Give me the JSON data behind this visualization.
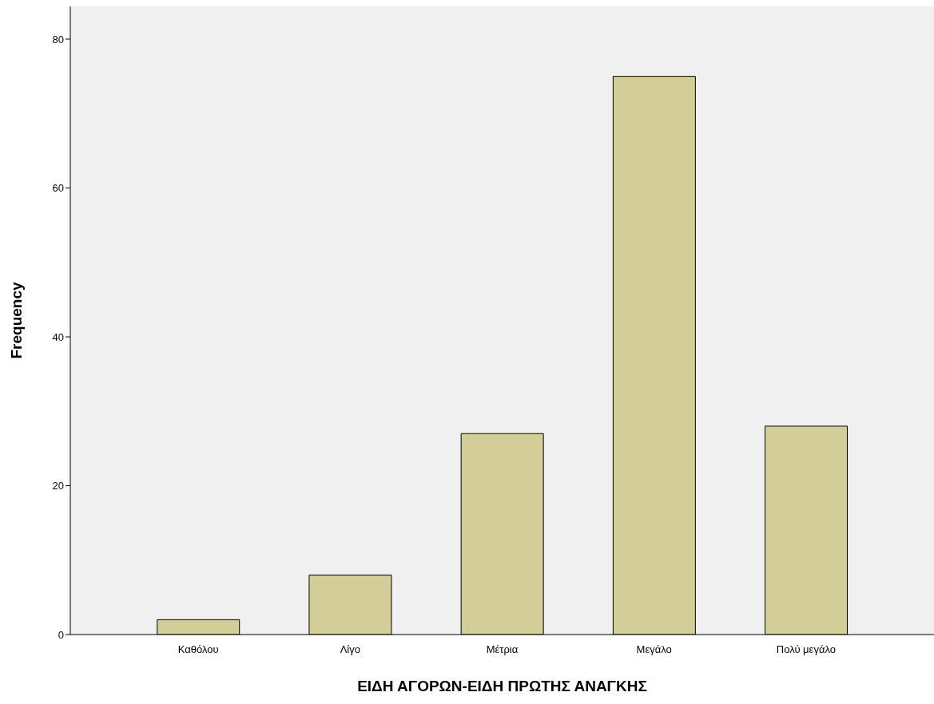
{
  "chart_data": {
    "type": "bar",
    "xlabel": "ΕΙΔΗ ΑΓΟΡΩΝ-ΕΙΔΗ ΠΡΩΤΗΣ ΑΝΑΓΚΗΣ",
    "ylabel": "Frequency",
    "categories": [
      "Καθόλου",
      "Λίγο",
      "Μέτρια",
      "Μεγάλο",
      "Πολύ μεγάλο"
    ],
    "values": [
      2,
      8,
      27,
      75,
      28
    ],
    "color": "#d3ce97",
    "ylim": [
      0,
      84.4
    ],
    "yticks": [
      0,
      20,
      40,
      60,
      80
    ],
    "grid": false,
    "legend": false
  }
}
